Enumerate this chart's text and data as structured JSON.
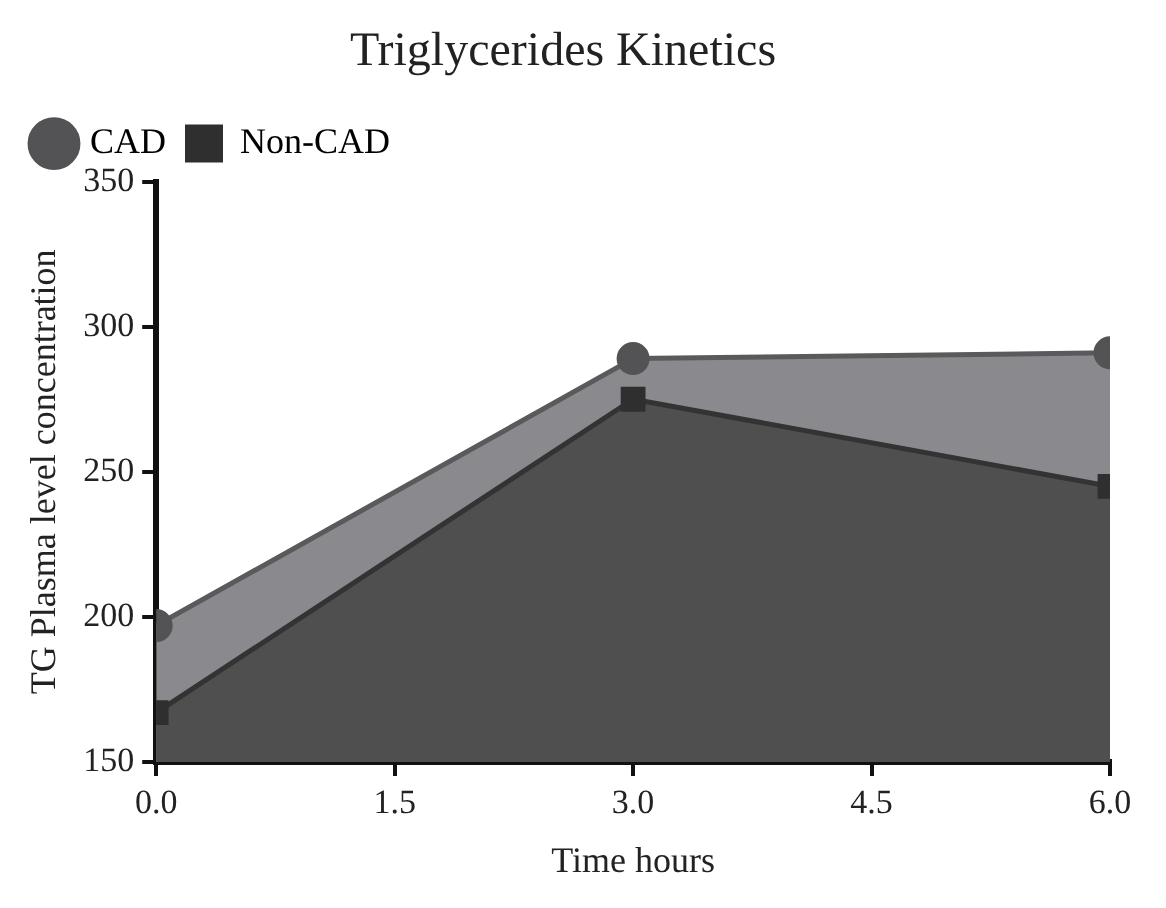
{
  "chart_data": {
    "type": "area",
    "title": "Triglycerides Kinetics",
    "xlabel": "Time hours",
    "ylabel": "TG Plasma level concentration",
    "x": [
      0,
      3,
      6
    ],
    "series": [
      {
        "name": "CAD",
        "color": "#8a8a8e",
        "values": [
          197,
          289,
          291
        ],
        "marker": "circle"
      },
      {
        "name": "Non-CAD",
        "color": "#4f4f4f",
        "values": [
          167,
          275,
          245
        ],
        "marker": "square"
      }
    ],
    "xlim": [
      0,
      6
    ],
    "xticks": [
      {
        "value": 0,
        "label": "0.0"
      },
      {
        "value": 1.5,
        "label": "1.5"
      },
      {
        "value": 3,
        "label": "3.0"
      },
      {
        "value": 4.5,
        "label": "4.5"
      },
      {
        "value": 6,
        "label": "6.0"
      }
    ],
    "ylim": [
      150,
      350
    ],
    "yticks": [
      150,
      200,
      250,
      300,
      350
    ],
    "grid": false,
    "legend": "top left",
    "line_style": "solid"
  }
}
